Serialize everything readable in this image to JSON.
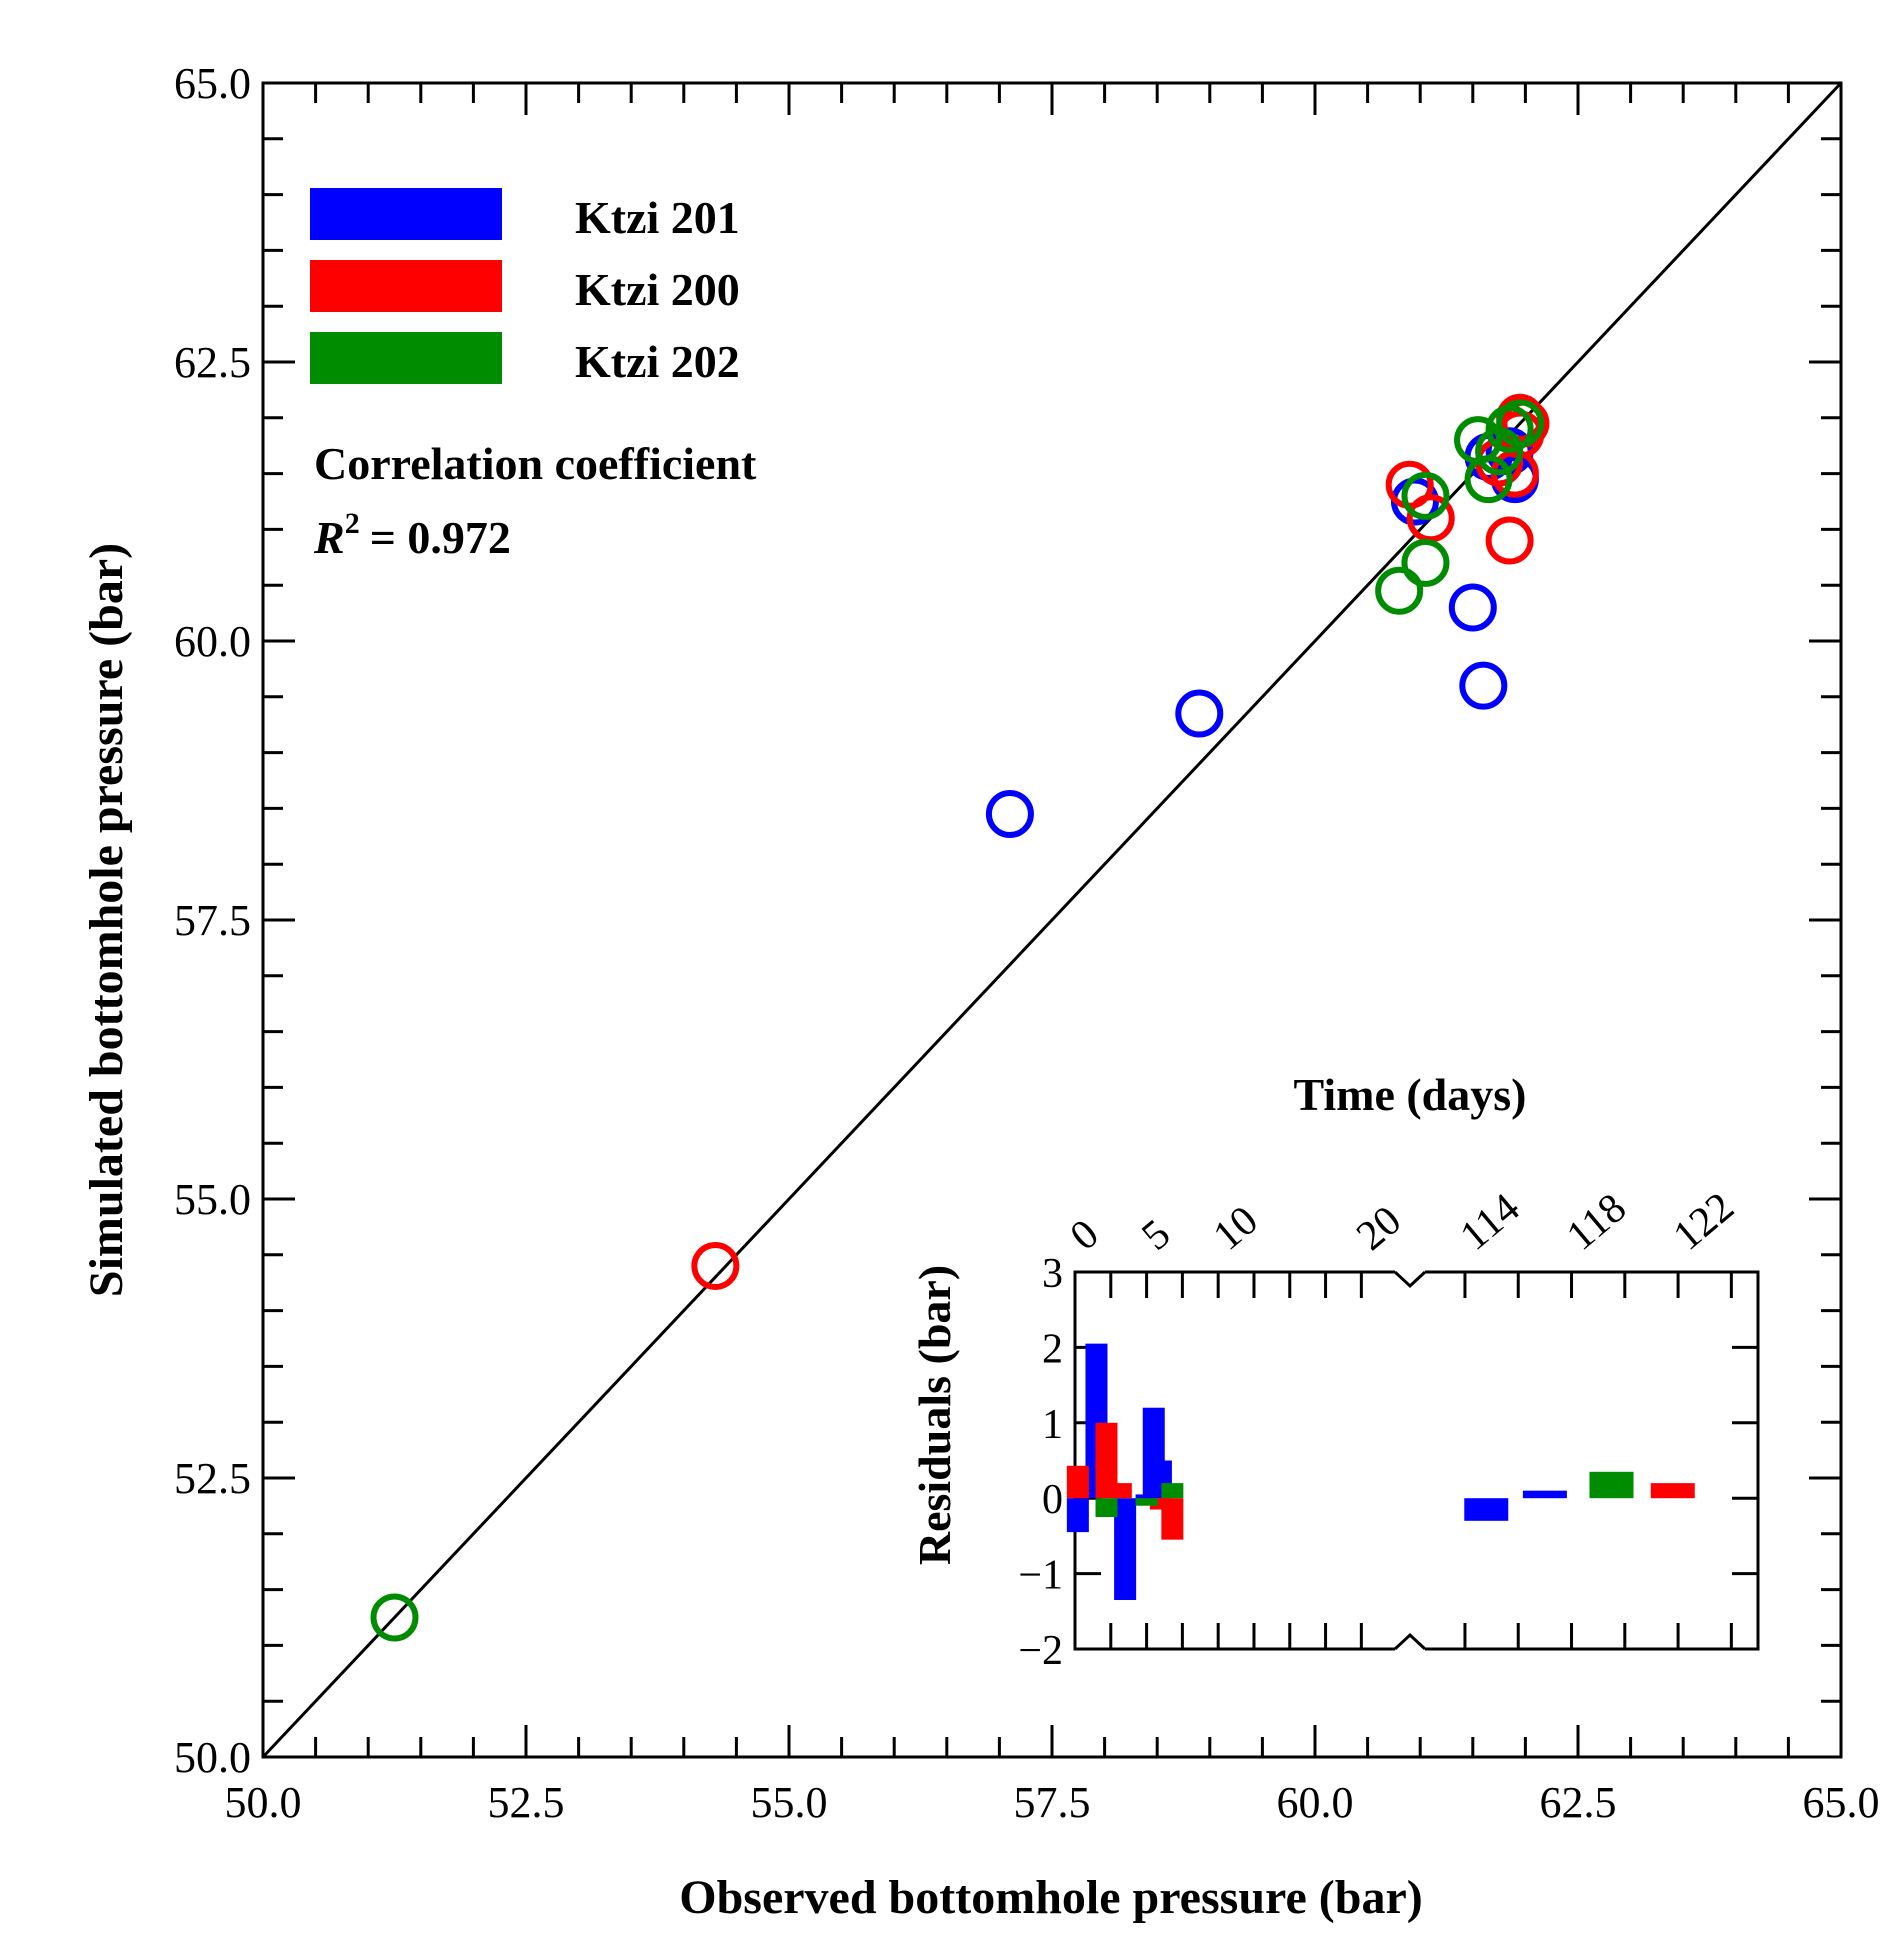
{
  "chart_data": [
    {
      "type": "scatter",
      "xlabel": "Observed bottomhole pressure (bar)",
      "ylabel": "Simulated bottomhole pressure (bar)",
      "xlim": [
        50.0,
        65.0
      ],
      "ylim": [
        50.0,
        65.0
      ],
      "xticks": [
        "50.0",
        "52.5",
        "55.0",
        "57.5",
        "60.0",
        "62.5",
        "65.0"
      ],
      "yticks": [
        "50.0",
        "52.5",
        "55.0",
        "57.5",
        "60.0",
        "62.5",
        "65.0"
      ],
      "reference_line": "y = x",
      "legend": {
        "position": "top-left"
      },
      "annotation": {
        "line1": "Correlation coefficient",
        "r_symbol": "R",
        "r_exp": "2",
        "r_value": "= 0.972"
      },
      "series": [
        {
          "name": "Ktzi 201",
          "color": "#0000ff",
          "points": [
            [
              57.1,
              58.45
            ],
            [
              58.9,
              59.35
            ],
            [
              60.95,
              61.25
            ],
            [
              61.5,
              60.3
            ],
            [
              61.6,
              59.6
            ],
            [
              61.65,
              61.65
            ],
            [
              61.75,
              61.6
            ],
            [
              61.9,
              61.45
            ],
            [
              61.85,
              61.7
            ]
          ]
        },
        {
          "name": "Ktzi 200",
          "color": "#ff0000",
          "points": [
            [
              54.3,
              54.4
            ],
            [
              60.9,
              61.4
            ],
            [
              61.1,
              61.1
            ],
            [
              61.75,
              61.6
            ],
            [
              61.85,
              60.9
            ],
            [
              61.9,
              61.5
            ],
            [
              61.95,
              61.85
            ],
            [
              62.0,
              61.95
            ],
            [
              61.95,
              62.0
            ]
          ]
        },
        {
          "name": "Ktzi 202",
          "color": "#008c00",
          "points": [
            [
              51.25,
              51.25
            ],
            [
              60.8,
              60.45
            ],
            [
              61.05,
              60.7
            ],
            [
              61.05,
              61.3
            ],
            [
              61.55,
              61.8
            ],
            [
              61.65,
              61.45
            ],
            [
              61.75,
              61.7
            ],
            [
              61.85,
              61.9
            ],
            [
              61.95,
              61.95
            ]
          ]
        }
      ]
    },
    {
      "type": "bar",
      "title": "Time (days)",
      "ylabel": "Residuals (bar)",
      "ylim": [
        -2,
        3
      ],
      "yticks": [
        "3",
        "2",
        "1",
        "0",
        "−1",
        "−2"
      ],
      "xticks_left": [
        "0",
        "5",
        "10",
        "20"
      ],
      "xticks_right": [
        "114",
        "118",
        "122"
      ],
      "broken_axis": true,
      "series": [
        {
          "name": "Ktzi 201",
          "color": "#0000ff",
          "bars": [
            [
              0.2,
              -0.45
            ],
            [
              1.5,
              2.05
            ],
            [
              3.5,
              -1.35
            ],
            [
              5.0,
              0.05
            ],
            [
              5.5,
              1.2
            ],
            [
              6.0,
              0.5
            ],
            [
              114.8,
              -0.3
            ],
            [
              117.0,
              0.1
            ]
          ]
        },
        {
          "name": "Ktzi 200",
          "color": "#ff0000",
          "bars": [
            [
              0.2,
              0.43
            ],
            [
              2.2,
              1.0
            ],
            [
              3.2,
              0.2
            ],
            [
              6.0,
              -0.15
            ],
            [
              6.8,
              -0.55
            ],
            [
              121.8,
              0.2
            ]
          ]
        },
        {
          "name": "Ktzi 202",
          "color": "#008c00",
          "bars": [
            [
              2.2,
              -0.25
            ],
            [
              5.0,
              -0.1
            ],
            [
              6.8,
              0.2
            ],
            [
              119.5,
              0.35
            ]
          ]
        }
      ]
    }
  ]
}
